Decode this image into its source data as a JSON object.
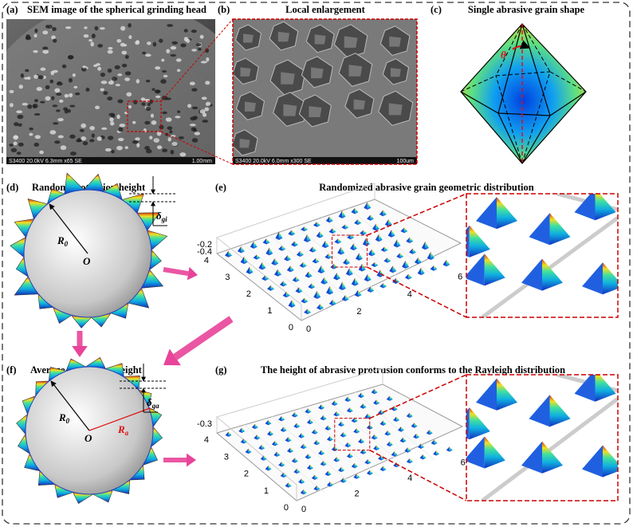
{
  "panels": {
    "a": {
      "tag": "(a)",
      "title": "SEM image of the spherical grinding head",
      "info": "S3400 20.0kV 6.3mm x65 SE",
      "scale": "1.00mm"
    },
    "b": {
      "tag": "(b)",
      "title": "Local enlargement",
      "info": "S3400 20.0kV 6.0mm x300 SE",
      "scale": "100um"
    },
    "c": {
      "tag": "(c)",
      "title": "Single abrasive grain shape",
      "angle": "θ"
    },
    "d": {
      "tag": "(d)",
      "title": "Random protrusion height",
      "radius": {
        "main": "R",
        "sub": "0"
      },
      "center": "O",
      "delta": {
        "main": "δ",
        "sub": "gi"
      }
    },
    "e": {
      "tag": "(e)",
      "title": "Randomized abrasive grain geometric distribution",
      "zticks": [
        -0.2,
        -0.4
      ],
      "yticks": [
        4,
        3,
        2,
        1,
        0
      ],
      "xticks": [
        0,
        2,
        4,
        6
      ]
    },
    "f": {
      "tag": "(f)",
      "title": "Average protrusion height",
      "radius": {
        "main": "R",
        "sub": "0"
      },
      "center": "O",
      "radius_avg": {
        "main": "R",
        "sub": "a"
      },
      "delta": {
        "main": "δ",
        "sub": "ga"
      }
    },
    "g": {
      "tag": "(g)",
      "title": "The height of abrasive protrusion conforms to the Rayleigh distribution",
      "zticks": [
        -0.3
      ],
      "yticks": [
        4,
        3,
        2,
        1,
        0
      ],
      "xticks": [
        0,
        2,
        4,
        6
      ]
    }
  }
}
